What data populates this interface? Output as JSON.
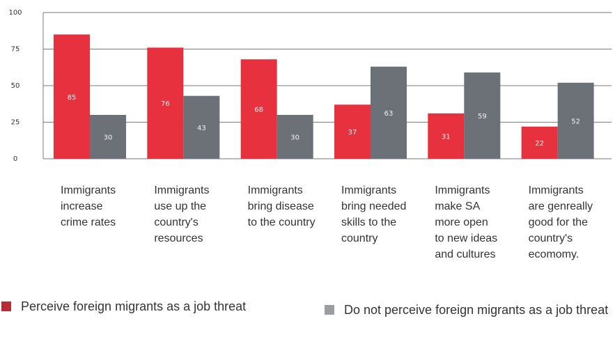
{
  "chart_data": {
    "type": "bar",
    "categories": [
      "Immigrants\nincrease\ncrime rates",
      "Immigrants\nuse up the\ncountry's\nresources",
      "Immigrants\nbring disease\nto the country",
      "Immigrants\nbring needed\nskills to the\ncountry",
      "Immigrants\nmake SA\nmore open\nto new ideas\nand cultures",
      "Immigrants\nare genreally\ngood for the\ncountry's\necomomy."
    ],
    "series": [
      {
        "name": "Perceive foreign migrants as a job threat",
        "values": [
          85,
          76,
          68,
          37,
          31,
          22
        ],
        "color": "#e8313f"
      },
      {
        "name": "Do not perceive foreign migrants as a job threat",
        "values": [
          30,
          43,
          30,
          63,
          59,
          52
        ],
        "color": "#6b7176"
      }
    ],
    "data_labels": [
      [
        "85",
        "76",
        "68",
        "37",
        "31",
        "22"
      ],
      [
        "30",
        "43",
        "30",
        "63",
        "59",
        "52"
      ]
    ],
    "yticks": [
      "0",
      "25",
      "50",
      "75",
      "100"
    ],
    "ylim": [
      0,
      100
    ],
    "grid": true,
    "legend_position": "bottom",
    "title": "",
    "xlabel": "",
    "ylabel": ""
  }
}
